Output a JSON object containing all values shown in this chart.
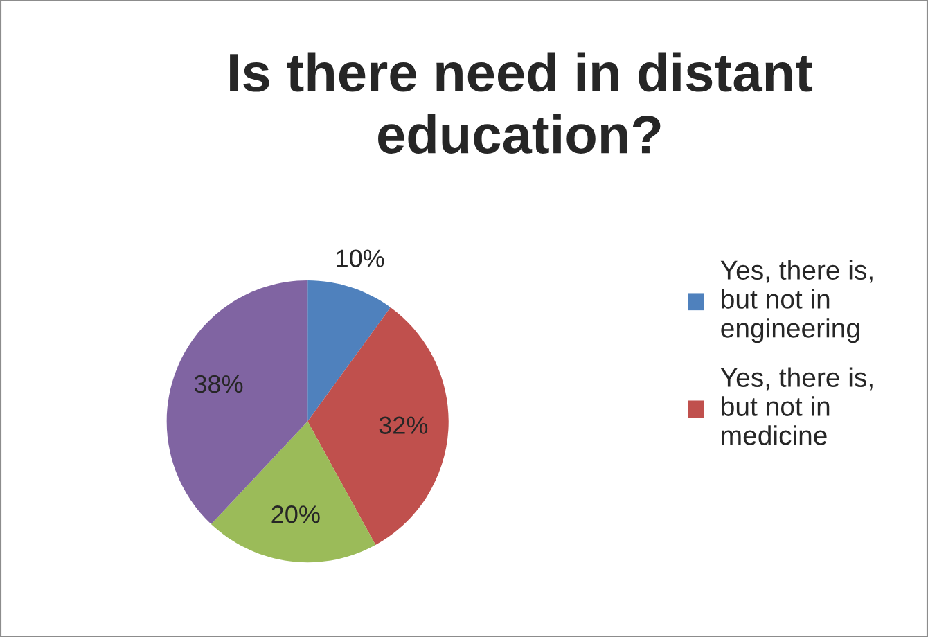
{
  "chart_data": {
    "type": "pie",
    "title": "Is there need in distant\neducation?",
    "categories": [
      "Yes, there is,\nbut not in\nengineering",
      "Yes, there is,\nbut not in\nmedicine",
      null,
      null
    ],
    "values": [
      10,
      32,
      20,
      38
    ],
    "value_labels": [
      "10%",
      "32%",
      "20%",
      "38%"
    ],
    "colors": [
      "#4f81bd",
      "#c0504d",
      "#9bbb59",
      "#8064a2"
    ],
    "legend": "right"
  }
}
